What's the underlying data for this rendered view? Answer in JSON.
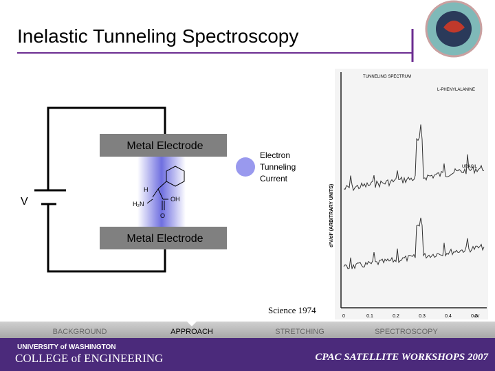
{
  "header": {
    "title": "Inelastic Tunneling Spectroscopy"
  },
  "diagram": {
    "electrode_top": "Metal Electrode",
    "electrode_bottom": "Metal Electrode",
    "voltage": "V",
    "legend": [
      "Electron",
      "Tunneling",
      "Current"
    ],
    "molecule_labels": [
      "H",
      "H₂N",
      "OH",
      "O"
    ]
  },
  "figure": {
    "title": "TUNNELING SPECTRUM",
    "compound_top": "L-PHENYLALANINE",
    "compound_bottom": "URACIL",
    "y_axis": "d²V/dI² (ARBITRARY UNITS)",
    "x_ticks": [
      "0",
      "0.1",
      "0.2",
      "0.3",
      "0.4",
      "0.5"
    ],
    "x_unit": "eV",
    "citation": "Science 1974"
  },
  "nav": {
    "items": [
      "BACKGROUND",
      "APPROACH",
      "STRETCHING",
      "SPECTROSCOPY"
    ],
    "active": 1
  },
  "footer": {
    "university": "UNIVERSITY of WASHINGTON",
    "college": "COLLEGE of ENGINEERING",
    "event": "CPAC SATELLITE WORKSHOPS 2007"
  }
}
